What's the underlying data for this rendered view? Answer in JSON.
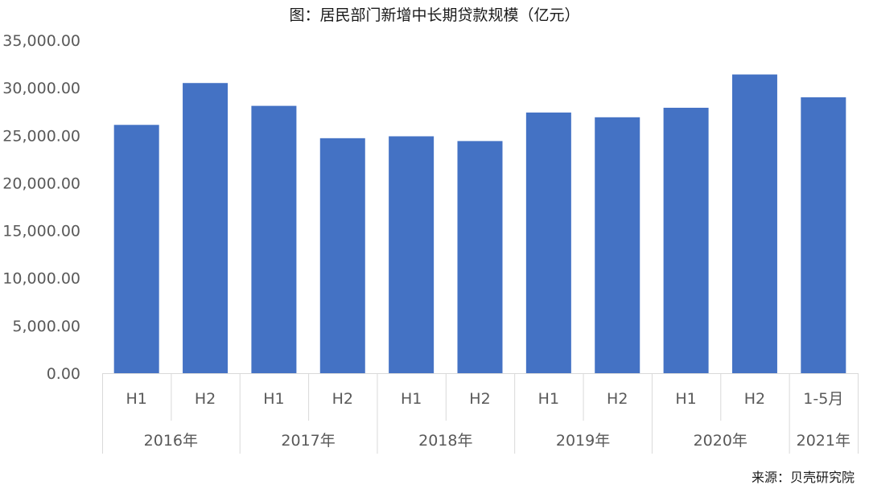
{
  "chart_data": {
    "type": "bar",
    "title": "图：居民部门新增中长期贷款规模（亿元）",
    "source": "来源：贝壳研究院",
    "xlabel": "",
    "ylabel": "",
    "ylim": [
      0,
      35000
    ],
    "yticks": [
      "0.00",
      "5,000.00",
      "10,000.00",
      "15,000.00",
      "20,000.00",
      "25,000.00",
      "30,000.00",
      "35,000.00"
    ],
    "bar_color": "#4472C4",
    "groups": [
      {
        "label": "2016年",
        "categories": [
          "H1",
          "H2"
        ]
      },
      {
        "label": "2017年",
        "categories": [
          "H1",
          "H2"
        ]
      },
      {
        "label": "2018年",
        "categories": [
          "H1",
          "H2"
        ]
      },
      {
        "label": "2019年",
        "categories": [
          "H1",
          "H2"
        ]
      },
      {
        "label": "2020年",
        "categories": [
          "H1",
          "H2"
        ]
      },
      {
        "label": "2021年",
        "categories": [
          "1-5月"
        ]
      }
    ],
    "values": [
      26100,
      30500,
      28100,
      24700,
      24900,
      24400,
      27400,
      26900,
      27900,
      31400,
      29000
    ],
    "grid": false,
    "legend": "none"
  }
}
